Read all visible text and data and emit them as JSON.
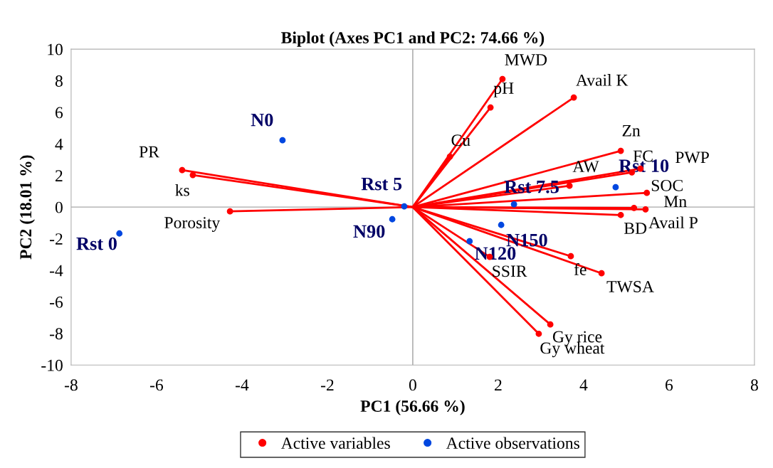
{
  "chart_data": {
    "type": "scatter",
    "title": "Biplot (Axes PC1 and PC2: 74.66 %)",
    "xlabel": "PC1 (56.66 %)",
    "ylabel": "PC2 (18.01 %)",
    "xlim": [
      -8,
      8
    ],
    "xticks": [
      -8,
      -6,
      -4,
      -2,
      0,
      2,
      4,
      6,
      8
    ],
    "ylim": [
      -10,
      10
    ],
    "yticks": [
      -10,
      -8,
      -6,
      -4,
      -2,
      0,
      2,
      4,
      6,
      8,
      10
    ],
    "grid": false,
    "legend": "bottom",
    "marker": "circle",
    "ref_lines": [
      {
        "axis": "x",
        "value": 0,
        "color": "#a0a0a0"
      },
      {
        "axis": "y",
        "value": 0,
        "color": "#a8a8a8"
      }
    ],
    "series": [
      {
        "name": "Active variables",
        "color": "#ff0000",
        "line_style": "solid",
        "x": [
          2.1,
          1.82,
          3.77,
          0.87,
          4.87,
          5.13,
          5.33,
          3.67,
          5.48,
          5.18,
          5.45,
          4.87,
          1.8,
          3.7,
          4.42,
          3.22,
          2.95,
          -5.4,
          -5.15,
          -4.28
        ],
        "values": [
          8.11,
          6.31,
          6.94,
          3.2,
          3.56,
          2.2,
          2.43,
          1.35,
          0.9,
          -0.05,
          -0.14,
          -0.5,
          -3.15,
          -3.11,
          -4.19,
          -7.43,
          -8.02,
          2.34,
          2.03,
          -0.27
        ]
      },
      {
        "name": "Active observations",
        "color": "#0047e0",
        "x": [
          -3.05,
          -6.87,
          -0.2,
          -0.48,
          2.37,
          4.75,
          2.07,
          1.33
        ],
        "values": [
          4.23,
          -1.67,
          0.05,
          -0.77,
          0.18,
          1.26,
          -1.13,
          -2.16
        ]
      }
    ],
    "annotations": [
      {
        "text": "MWD",
        "x": 2.1,
        "y": 8.11
      },
      {
        "text": "pH",
        "x": 1.82,
        "y": 6.31
      },
      {
        "text": "Avail K",
        "x": 3.77,
        "y": 6.94
      },
      {
        "text": "Cu",
        "x": 0.87,
        "y": 3.2
      },
      {
        "text": "Zn",
        "x": 4.87,
        "y": 3.56
      },
      {
        "text": "FC",
        "x": 5.13,
        "y": 2.2
      },
      {
        "text": "PWP",
        "x": 5.33,
        "y": 2.43
      },
      {
        "text": "AW",
        "x": 3.67,
        "y": 1.35
      },
      {
        "text": "SOC",
        "x": 5.48,
        "y": 0.9
      },
      {
        "text": "Mn",
        "x": 5.18,
        "y": -0.05
      },
      {
        "text": "Avail P",
        "x": 5.45,
        "y": -0.14
      },
      {
        "text": "BD",
        "x": 4.87,
        "y": -0.5
      },
      {
        "text": "SSIR",
        "x": 1.8,
        "y": -3.15
      },
      {
        "text": "fe",
        "x": 3.7,
        "y": -3.11
      },
      {
        "text": "TWSA",
        "x": 4.42,
        "y": -4.19
      },
      {
        "text": "Gy rice",
        "x": 3.22,
        "y": -7.43
      },
      {
        "text": "Gy wheat",
        "x": 2.95,
        "y": -8.02
      },
      {
        "text": "PR",
        "x": -5.4,
        "y": 2.34
      },
      {
        "text": "ks",
        "x": -5.15,
        "y": 2.03
      },
      {
        "text": "Porosity",
        "x": -4.28,
        "y": -0.27
      },
      {
        "text": "N0",
        "x": -3.05,
        "y": 4.23
      },
      {
        "text": "Rst 0",
        "x": -6.87,
        "y": -1.67
      },
      {
        "text": "Rst 5",
        "x": -0.2,
        "y": 0.05
      },
      {
        "text": "N90",
        "x": -0.48,
        "y": -0.77
      },
      {
        "text": "Rst 7.5",
        "x": 2.37,
        "y": 0.18
      },
      {
        "text": "Rst 10",
        "x": 4.75,
        "y": 1.26
      },
      {
        "text": "N150",
        "x": 2.07,
        "y": -1.13
      },
      {
        "text": "N120",
        "x": 1.33,
        "y": -2.16
      }
    ]
  }
}
